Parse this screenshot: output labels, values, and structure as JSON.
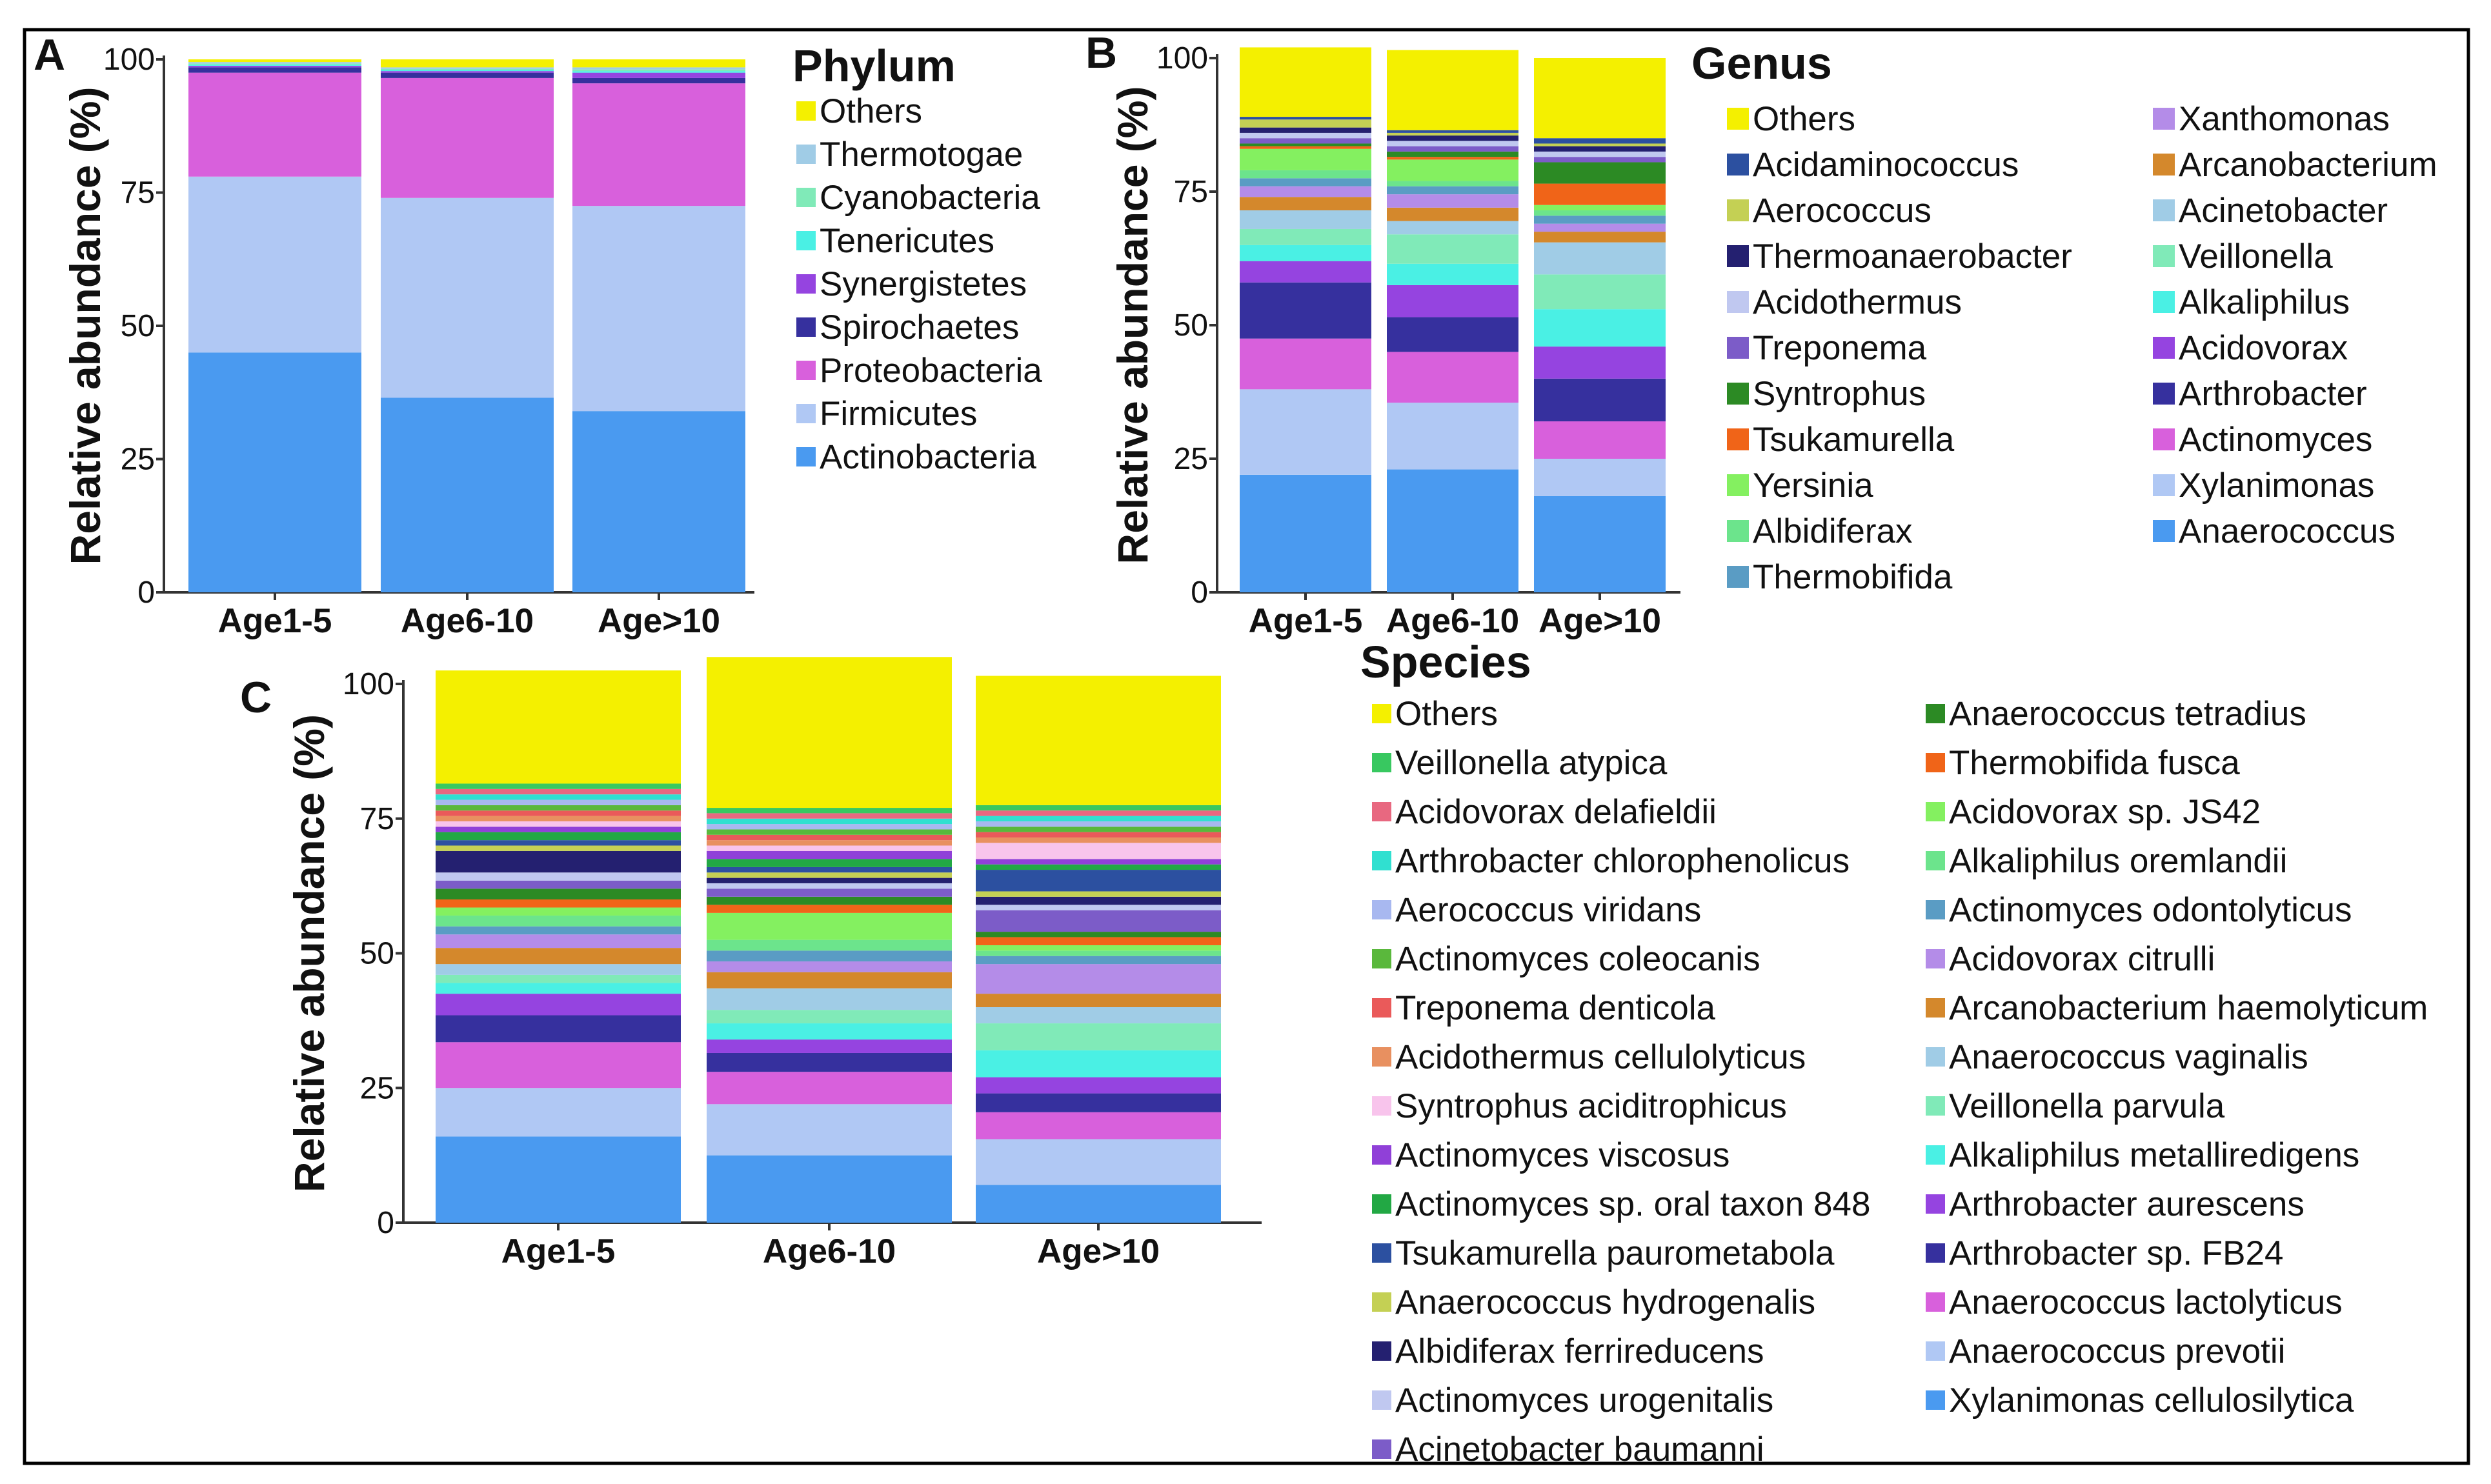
{
  "chart_data": [
    {
      "panel": "A",
      "type": "bar",
      "stacked": true,
      "ylabel": "Relative abundance (%)",
      "ylim": [
        0,
        100
      ],
      "yticks": [
        "0",
        "25",
        "50",
        "75",
        "100"
      ],
      "categories": [
        "Age1-5",
        "Age6-10",
        "Age>10"
      ],
      "legend_title": "Phylum",
      "legend_columns": 1,
      "series": [
        {
          "name": "Actinobacteria",
          "color": "#4a9af0",
          "values": [
            45,
            36.5,
            34
          ]
        },
        {
          "name": "Firmicutes",
          "color": "#b0c8f4",
          "values": [
            33,
            37.5,
            38.5
          ]
        },
        {
          "name": "Proteobacteria",
          "color": "#d860dc",
          "values": [
            19.5,
            22.5,
            23
          ]
        },
        {
          "name": "Spirochaetes",
          "color": "#36309e",
          "values": [
            1,
            1,
            1
          ]
        },
        {
          "name": "Synergistetes",
          "color": "#9544e0",
          "values": [
            0.3,
            0.3,
            1
          ]
        },
        {
          "name": "Tenericutes",
          "color": "#4af0e4",
          "values": [
            0.2,
            0.2,
            0.3
          ]
        },
        {
          "name": "Cyanobacteria",
          "color": "#80eab8",
          "values": [
            0.2,
            0.2,
            0.3
          ]
        },
        {
          "name": "Thermotogae",
          "color": "#a0cce6",
          "values": [
            0.3,
            0.3,
            0.4
          ]
        },
        {
          "name": "Others",
          "color": "#f4f000",
          "values": [
            0.5,
            1.5,
            1.5
          ]
        }
      ]
    },
    {
      "panel": "B",
      "type": "bar",
      "stacked": true,
      "ylabel": "Relative abundance (%)",
      "ylim": [
        0,
        100
      ],
      "yticks": [
        "0",
        "25",
        "50",
        "75",
        "100"
      ],
      "categories": [
        "Age1-5",
        "Age6-10",
        "Age>10"
      ],
      "legend_title": "Genus",
      "legend_columns": 2,
      "series": [
        {
          "name": "Anaerococcus",
          "color": "#4a9af0",
          "values": [
            22,
            23,
            18
          ]
        },
        {
          "name": "Xylanimonas",
          "color": "#b0c8f4",
          "values": [
            16,
            12.5,
            7
          ]
        },
        {
          "name": "Actinomyces",
          "color": "#d860dc",
          "values": [
            9.5,
            9.5,
            7
          ]
        },
        {
          "name": "Arthrobacter",
          "color": "#36309e",
          "values": [
            10.5,
            6.5,
            8
          ]
        },
        {
          "name": "Acidovorax",
          "color": "#9544e0",
          "values": [
            4,
            6,
            6
          ]
        },
        {
          "name": "Alkaliphilus",
          "color": "#4af0e4",
          "values": [
            3,
            4,
            7
          ]
        },
        {
          "name": "Veillonella",
          "color": "#80eab8",
          "values": [
            3,
            5.5,
            6.5
          ]
        },
        {
          "name": "Acinetobacter",
          "color": "#a0cce6",
          "values": [
            3.5,
            2.5,
            6
          ]
        },
        {
          "name": "Arcanobacterium",
          "color": "#d4882c",
          "values": [
            2.5,
            2.5,
            2
          ]
        },
        {
          "name": "Xanthomonas",
          "color": "#b48ce8",
          "values": [
            2,
            2.5,
            1.5
          ]
        },
        {
          "name": "Thermobifida",
          "color": "#5a9cc4",
          "values": [
            1.5,
            1.5,
            1.5
          ]
        },
        {
          "name": "Albidiferax",
          "color": "#6ce48c",
          "values": [
            1.5,
            1,
            1
          ]
        },
        {
          "name": "Yersinia",
          "color": "#84f060",
          "values": [
            4,
            4,
            1
          ]
        },
        {
          "name": "Tsukamurella",
          "color": "#f06418",
          "values": [
            0.5,
            0.5,
            4
          ]
        },
        {
          "name": "Syntrophus",
          "color": "#2c8a24",
          "values": [
            0.5,
            1,
            4
          ]
        },
        {
          "name": "Treponema",
          "color": "#7c5cc8",
          "values": [
            1,
            1,
            1
          ]
        },
        {
          "name": "Acidothermus",
          "color": "#c0c8f0",
          "values": [
            1,
            1,
            1
          ]
        },
        {
          "name": "Thermoanaerobacter",
          "color": "#242070",
          "values": [
            1,
            1,
            1
          ]
        },
        {
          "name": "Aerococcus",
          "color": "#c4d054",
          "values": [
            1.5,
            0.5,
            0.5
          ]
        },
        {
          "name": "Acidaminococcus",
          "color": "#2c50a0",
          "values": [
            0.5,
            0.5,
            1
          ]
        },
        {
          "name": "Others",
          "color": "#f4f000",
          "values": [
            13,
            15,
            15
          ]
        }
      ]
    },
    {
      "panel": "C",
      "type": "bar",
      "stacked": true,
      "ylabel": "Relative abundance (%)",
      "ylim": [
        0,
        100
      ],
      "yticks": [
        "0",
        "25",
        "50",
        "75",
        "100"
      ],
      "categories": [
        "Age1-5",
        "Age6-10",
        "Age>10"
      ],
      "legend_title": "Species",
      "legend_columns": 2,
      "series": [
        {
          "name": "Xylanimonas cellulosilytica",
          "color": "#4a9af0",
          "values": [
            16,
            12.5,
            7
          ]
        },
        {
          "name": "Anaerococcus prevotii",
          "color": "#b0c8f4",
          "values": [
            9,
            9.5,
            8.5
          ]
        },
        {
          "name": "Anaerococcus lactolyticus",
          "color": "#d860dc",
          "values": [
            8.5,
            6,
            5
          ]
        },
        {
          "name": "Arthrobacter sp. FB24",
          "color": "#36309e",
          "values": [
            5,
            3.5,
            3.5
          ]
        },
        {
          "name": "Arthrobacter aurescens",
          "color": "#9544e0",
          "values": [
            4,
            2.5,
            3
          ]
        },
        {
          "name": "Alkaliphilus metalliredigens",
          "color": "#4af0e4",
          "values": [
            2,
            3,
            5
          ]
        },
        {
          "name": "Veillonella parvula",
          "color": "#80eab8",
          "values": [
            1.5,
            2.5,
            5
          ]
        },
        {
          "name": "Anaerococcus vaginalis",
          "color": "#a0cce6",
          "values": [
            2,
            4,
            3
          ]
        },
        {
          "name": "Arcanobacterium haemolyticum",
          "color": "#d4882c",
          "values": [
            3,
            3,
            2.5
          ]
        },
        {
          "name": "Acidovorax citrulli",
          "color": "#b48ce8",
          "values": [
            2.5,
            2,
            5.5
          ]
        },
        {
          "name": "Actinomyces odontolyticus",
          "color": "#5a9cc4",
          "values": [
            1.5,
            2,
            1.5
          ]
        },
        {
          "name": "Alkaliphilus oremlandii",
          "color": "#6ce48c",
          "values": [
            2,
            2,
            1
          ]
        },
        {
          "name": "Acidovorax sp. JS42",
          "color": "#84f060",
          "values": [
            1.5,
            5,
            1
          ]
        },
        {
          "name": "Thermobifida fusca",
          "color": "#f06418",
          "values": [
            1.5,
            1.5,
            1.5
          ]
        },
        {
          "name": "Anaerococcus tetradius",
          "color": "#2c8a24",
          "values": [
            2,
            1.5,
            1
          ]
        },
        {
          "name": "Acinetobacter baumanni",
          "color": "#7c5cc8",
          "values": [
            1.5,
            1.5,
            4
          ]
        },
        {
          "name": "Actinomyces urogenitalis",
          "color": "#c0c8f0",
          "values": [
            1.5,
            1,
            1
          ]
        },
        {
          "name": "Albidiferax ferrireducens",
          "color": "#242070",
          "values": [
            4,
            1,
            1.5
          ]
        },
        {
          "name": "Anaerococcus hydrogenalis",
          "color": "#c4d054",
          "values": [
            1,
            1,
            1
          ]
        },
        {
          "name": "Tsukamurella paurometabola",
          "color": "#2c50a0",
          "values": [
            1,
            1,
            4
          ]
        },
        {
          "name": "Actinomyces sp. oral taxon 848",
          "color": "#22a844",
          "values": [
            1.5,
            1.5,
            1
          ]
        },
        {
          "name": "Actinomyces viscosus",
          "color": "#9040d8",
          "values": [
            1,
            1.5,
            1
          ]
        },
        {
          "name": "Syntrophus aciditrophicus",
          "color": "#f8c4ec",
          "values": [
            1,
            1,
            3
          ]
        },
        {
          "name": "Acidothermus cellulolyticus",
          "color": "#e89060",
          "values": [
            1,
            1,
            1
          ]
        },
        {
          "name": "Treponema denticola",
          "color": "#ea5a5a",
          "values": [
            1,
            1,
            1
          ]
        },
        {
          "name": "Actinomyces coleocanis",
          "color": "#5ab83c",
          "values": [
            1,
            1,
            1
          ]
        },
        {
          "name": "Aerococcus viridans",
          "color": "#a8b8f0",
          "values": [
            1,
            1,
            1
          ]
        },
        {
          "name": "Arthrobacter chlorophenolicus",
          "color": "#30e0d0",
          "values": [
            1,
            1,
            1
          ]
        },
        {
          "name": "Acidovorax delafieldii",
          "color": "#e86880",
          "values": [
            1,
            1,
            1
          ]
        },
        {
          "name": "Veillonella atypica",
          "color": "#38c860",
          "values": [
            1,
            1,
            1
          ]
        },
        {
          "name": "Others",
          "color": "#f4f000",
          "values": [
            21,
            28,
            24
          ]
        }
      ]
    }
  ]
}
